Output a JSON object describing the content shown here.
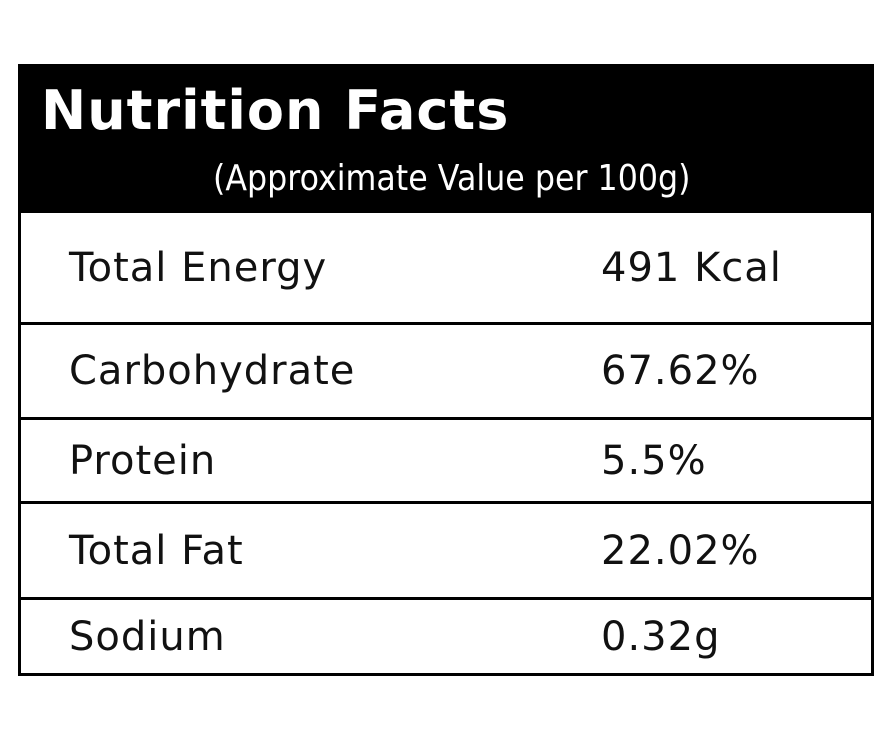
{
  "header": {
    "title": "Nutrition Facts",
    "subtitle": "(Approximate Value per 100g)"
  },
  "rows": [
    {
      "label": "Total Energy",
      "value": "491 Kcal"
    },
    {
      "label": "Carbohydrate",
      "value": "67.62%"
    },
    {
      "label": "Protein",
      "value": "5.5%"
    },
    {
      "label": "Total Fat",
      "value": "22.02%"
    },
    {
      "label": "Sodium",
      "value": "0.32g"
    }
  ]
}
